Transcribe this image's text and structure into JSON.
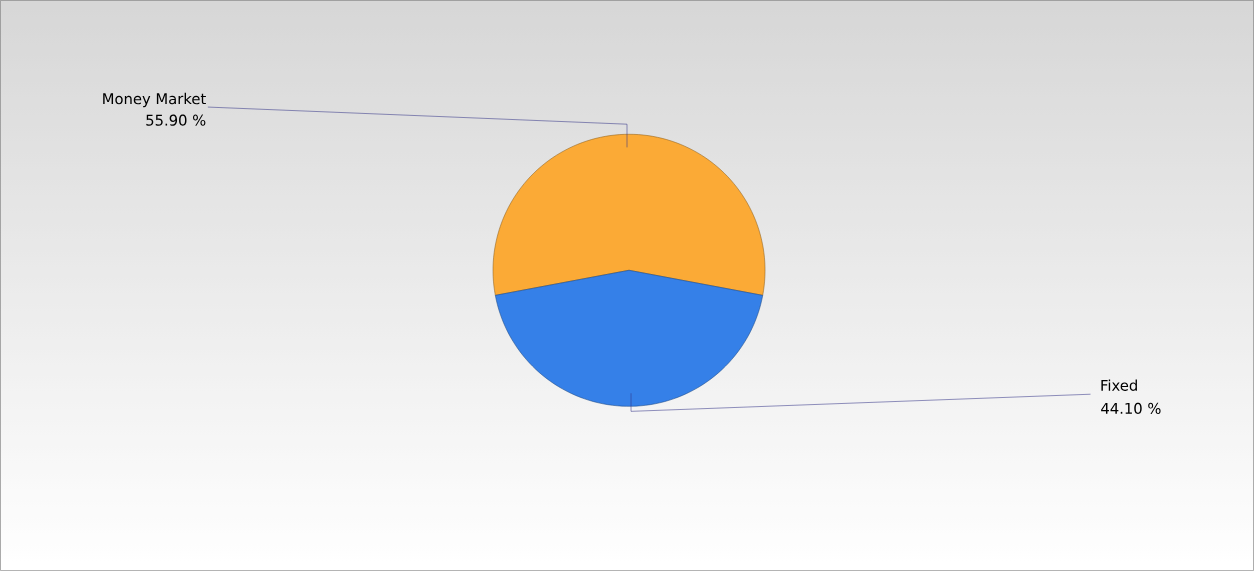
{
  "chart_data": {
    "type": "pie",
    "categories": [
      "Money Market",
      "Fixed"
    ],
    "values": [
      55.9,
      44.1
    ],
    "colors": [
      "#fbaa36",
      "#3580e8"
    ],
    "value_labels": [
      "55.90 %",
      "44.10 %"
    ]
  }
}
